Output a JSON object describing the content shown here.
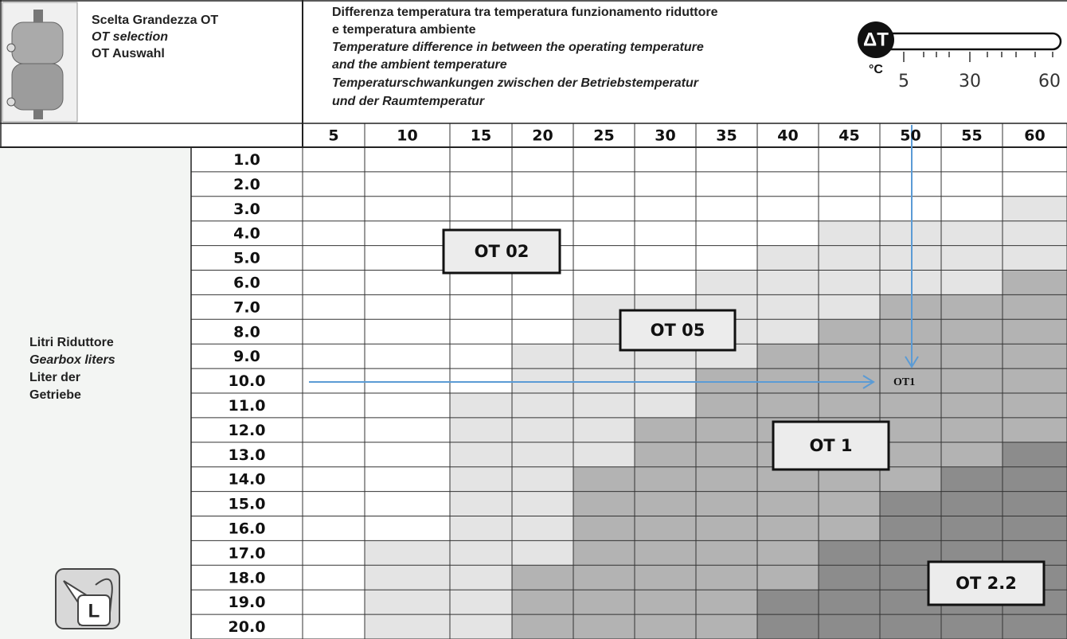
{
  "header": {
    "title_it": "Scelta Grandezza OT",
    "title_en": "OT selection",
    "title_de": "OT Auswahl",
    "description": [
      "Differenza temperatura tra temperatura funzionamento riduttore",
      "e temperatura ambiente",
      "Temperature difference in between the operating temperature",
      "and the ambient temperature",
      "Temperaturschwankungen zwischen der Betriebstemperatur",
      "und der Raumtemperatur"
    ],
    "delta_symbol": "ΔT",
    "unit": "°C",
    "scale_labels": [
      "5",
      "30",
      "60"
    ]
  },
  "table": {
    "columns": [
      "5",
      "10",
      "15",
      "20",
      "25",
      "30",
      "35",
      "40",
      "45",
      "50",
      "55",
      "60"
    ],
    "rows": [
      "1.0",
      "2.0",
      "3.0",
      "4.0",
      "5.0",
      "6.0",
      "7.0",
      "8.0",
      "9.0",
      "10.0",
      "11.0",
      "12.0",
      "13.0",
      "14.0",
      "15.0",
      "16.0",
      "17.0",
      "18.0",
      "19.0",
      "20.0"
    ]
  },
  "row_header": [
    "Litri Riduttore",
    "Gearbox liters",
    "Liter der",
    "Getriebe"
  ],
  "zones": [
    "OT 02",
    "OT 05",
    "OT 1",
    "OT 2.2"
  ],
  "example": {
    "label": "OT1"
  },
  "can_label": "L"
}
